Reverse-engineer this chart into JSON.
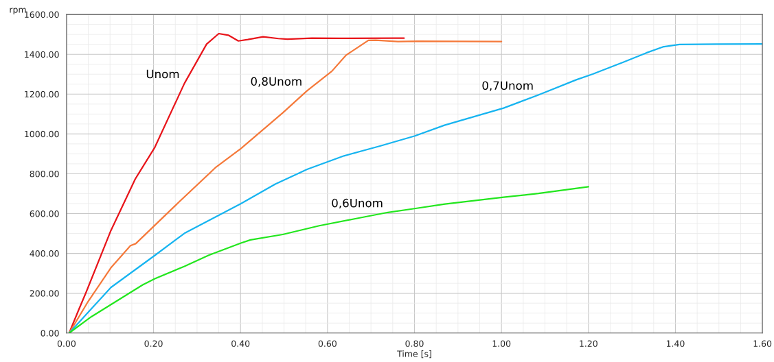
{
  "chart_data": {
    "type": "line",
    "xlabel": "Time [s]",
    "ylabel": "rpm",
    "grid": true,
    "legend": false,
    "marker": "none",
    "line_style": "solid",
    "xlim": [
      0,
      1.6
    ],
    "ylim": [
      0,
      1600
    ],
    "xticks": [
      {
        "value": 0,
        "label": "0.00"
      },
      {
        "value": 0.2,
        "label": "0.20"
      },
      {
        "value": 0.4,
        "label": "0.40"
      },
      {
        "value": 0.6,
        "label": "0.60"
      },
      {
        "value": 0.8,
        "label": "0.80"
      },
      {
        "value": 1.0,
        "label": "1.00"
      },
      {
        "value": 1.2,
        "label": "1.20"
      },
      {
        "value": 1.4,
        "label": "1.40"
      },
      {
        "value": 1.6,
        "label": "1.60"
      }
    ],
    "yticks": [
      {
        "value": 0,
        "label": "0.00"
      },
      {
        "value": 200,
        "label": "200.00"
      },
      {
        "value": 400,
        "label": "400.00"
      },
      {
        "value": 600,
        "label": "600.00"
      },
      {
        "value": 800,
        "label": "800.00"
      },
      {
        "value": 1000,
        "label": "1000.00"
      },
      {
        "value": 1200,
        "label": "1200.00"
      },
      {
        "value": 1400,
        "label": "1400.00"
      },
      {
        "value": 1600,
        "label": "1600.00"
      }
    ],
    "series": [
      {
        "name": "Unom",
        "color": "#e8141a",
        "x": [
          0.006,
          0.028,
          0.045,
          0.102,
          0.158,
          0.203,
          0.271,
          0.322,
          0.35,
          0.372,
          0.395,
          0.417,
          0.452,
          0.487,
          0.508,
          0.564,
          0.627,
          0.753,
          0.776
        ],
        "values": [
          0,
          117,
          205,
          515,
          774,
          933,
          1254,
          1451,
          1504,
          1496,
          1467,
          1474,
          1488,
          1479,
          1476,
          1481,
          1480,
          1481,
          1481
        ]
      },
      {
        "name": "0,8Unom",
        "color": "#f5793a",
        "x": [
          0.006,
          0.05,
          0.102,
          0.147,
          0.159,
          0.26,
          0.344,
          0.401,
          0.497,
          0.553,
          0.61,
          0.643,
          0.694,
          0.711,
          0.762,
          0.807,
          1.0
        ],
        "values": [
          0,
          160,
          328,
          439,
          449,
          661,
          834,
          927,
          1106,
          1217,
          1315,
          1396,
          1470,
          1471,
          1464,
          1466,
          1464
        ]
      },
      {
        "name": "0,7Unom",
        "color": "#16b4f0",
        "x": [
          0.006,
          0.102,
          0.203,
          0.271,
          0.401,
          0.48,
          0.553,
          0.638,
          0.722,
          0.801,
          0.869,
          1.005,
          1.085,
          1.172,
          1.21,
          1.28,
          1.333,
          1.371,
          1.409,
          1.495,
          1.6
        ],
        "values": [
          0,
          229,
          390,
          501,
          650,
          748,
          822,
          890,
          940,
          990,
          1044,
          1130,
          1196,
          1272,
          1301,
          1360,
          1407,
          1437,
          1449,
          1451,
          1452
        ]
      },
      {
        "name": "0,6Unom",
        "color": "#22e61e",
        "x": [
          0.006,
          0.057,
          0.175,
          0.203,
          0.271,
          0.327,
          0.401,
          0.423,
          0.497,
          0.581,
          0.666,
          0.739,
          0.8,
          0.87,
          1.005,
          1.085,
          1.2
        ],
        "values": [
          0,
          82,
          242,
          273,
          335,
          391,
          452,
          468,
          495,
          539,
          575,
          606,
          625,
          648,
          682,
          701,
          735
        ]
      }
    ]
  }
}
